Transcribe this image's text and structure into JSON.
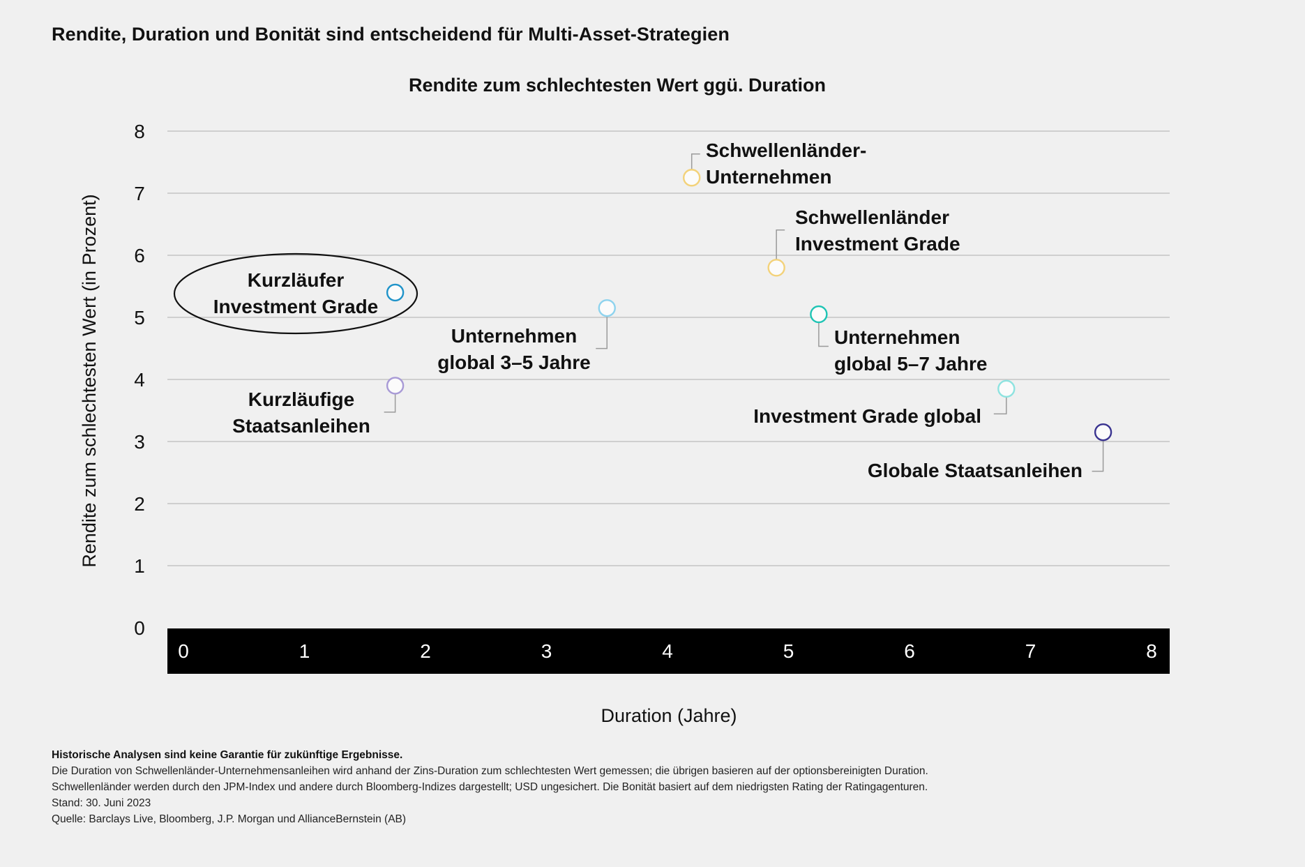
{
  "page": {
    "title": "Rendite, Duration und Bonität sind entscheidend für Multi-Asset-Strategien"
  },
  "chart_data": {
    "type": "scatter",
    "title": "Rendite zum schlechtesten Wert ggü. Duration",
    "xlabel": "Duration (Jahre)",
    "ylabel": "Rendite zum schlechtesten Wert (in Prozent)",
    "xlim": [
      0,
      8
    ],
    "ylim": [
      0,
      8
    ],
    "xticks": [
      "0",
      "1",
      "2",
      "3",
      "4",
      "5",
      "6",
      "7",
      "8"
    ],
    "yticks": [
      "0",
      "1",
      "2",
      "3",
      "4",
      "5",
      "6",
      "7",
      "8"
    ],
    "grid": true,
    "points": [
      {
        "lines": [
          "Kurzläufer",
          "Investment Grade"
        ],
        "x": 1.75,
        "y": 5.4,
        "color": "#1f93c9",
        "highlighted": true
      },
      {
        "lines": [
          "Kurzläufige",
          "Staatsanleihen"
        ],
        "x": 1.75,
        "y": 3.9,
        "color": "#a89ad6"
      },
      {
        "lines": [
          "Unternehmen",
          "global 3–5 Jahre"
        ],
        "x": 3.5,
        "y": 5.15,
        "color": "#8ed3ee"
      },
      {
        "lines": [
          "Schwellenländer-",
          "Unternehmen"
        ],
        "x": 4.2,
        "y": 7.25,
        "color": "#f3d27a"
      },
      {
        "lines": [
          "Schwellenländer",
          "Investment Grade"
        ],
        "x": 4.9,
        "y": 5.8,
        "color": "#f3d27a"
      },
      {
        "lines": [
          "Unternehmen",
          "global 5–7 Jahre"
        ],
        "x": 5.25,
        "y": 5.05,
        "color": "#1dc4b4"
      },
      {
        "lines": [
          "Investment Grade global"
        ],
        "x": 6.8,
        "y": 3.85,
        "color": "#8ee3e0"
      },
      {
        "lines": [
          "Globale Staatsanleihen"
        ],
        "x": 7.6,
        "y": 3.15,
        "color": "#3a3490"
      }
    ]
  },
  "footnotes": {
    "lead": "Historische Analysen sind keine Garantie für zukünftige Ergebnisse.",
    "line1": "Die Duration von Schwellenländer-Unternehmensanleihen wird anhand der Zins-Duration zum schlechtesten Wert gemessen; die übrigen basieren auf der optionsbereinigten Duration.",
    "line2": "Schwellenländer werden durch den JPM-Index und andere durch Bloomberg-Indizes dargestellt; USD ungesichert. Die Bonität basiert auf dem niedrigsten Rating der Ratingagenturen.",
    "line3": "Stand: 30. Juni 2023",
    "line4": "Quelle: Barclays Live, Bloomberg, J.P. Morgan und AllianceBernstein (AB)"
  }
}
